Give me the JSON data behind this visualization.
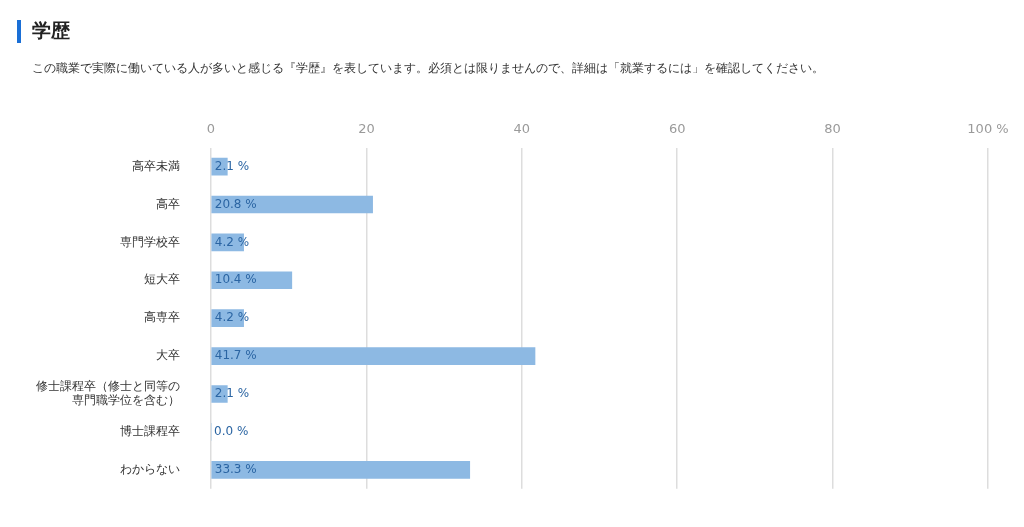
{
  "chart_data": {
    "type": "bar",
    "orientation": "horizontal",
    "title": "学歴",
    "subtitle": "この職業で実際に働いている人が多いと感じる『学歴』を表しています。必須とは限りませんので、詳細は「就業するには」を確認してください。",
    "categories": [
      "高卒未満",
      "高卒",
      "専門学校卒",
      "短大卒",
      "高専卒",
      "大卒",
      "修士課程卒（修士と同等の専門職学位を含む）",
      "博士課程卒",
      "わからない"
    ],
    "values": [
      2.1,
      20.8,
      4.2,
      10.4,
      4.2,
      41.7,
      2.1,
      0.0,
      33.3
    ],
    "value_labels": [
      "2.1 %",
      "20.8 %",
      "4.2 %",
      "10.4 %",
      "4.2 %",
      "41.7 %",
      "2.1 %",
      "0.0 %",
      "33.3 %"
    ],
    "color": "#8db9e3",
    "xlim": [
      0,
      100
    ],
    "xticks": [
      0,
      20,
      40,
      60,
      80,
      {
        "value": 100,
        "label": "100 %"
      }
    ],
    "grid": "x"
  }
}
